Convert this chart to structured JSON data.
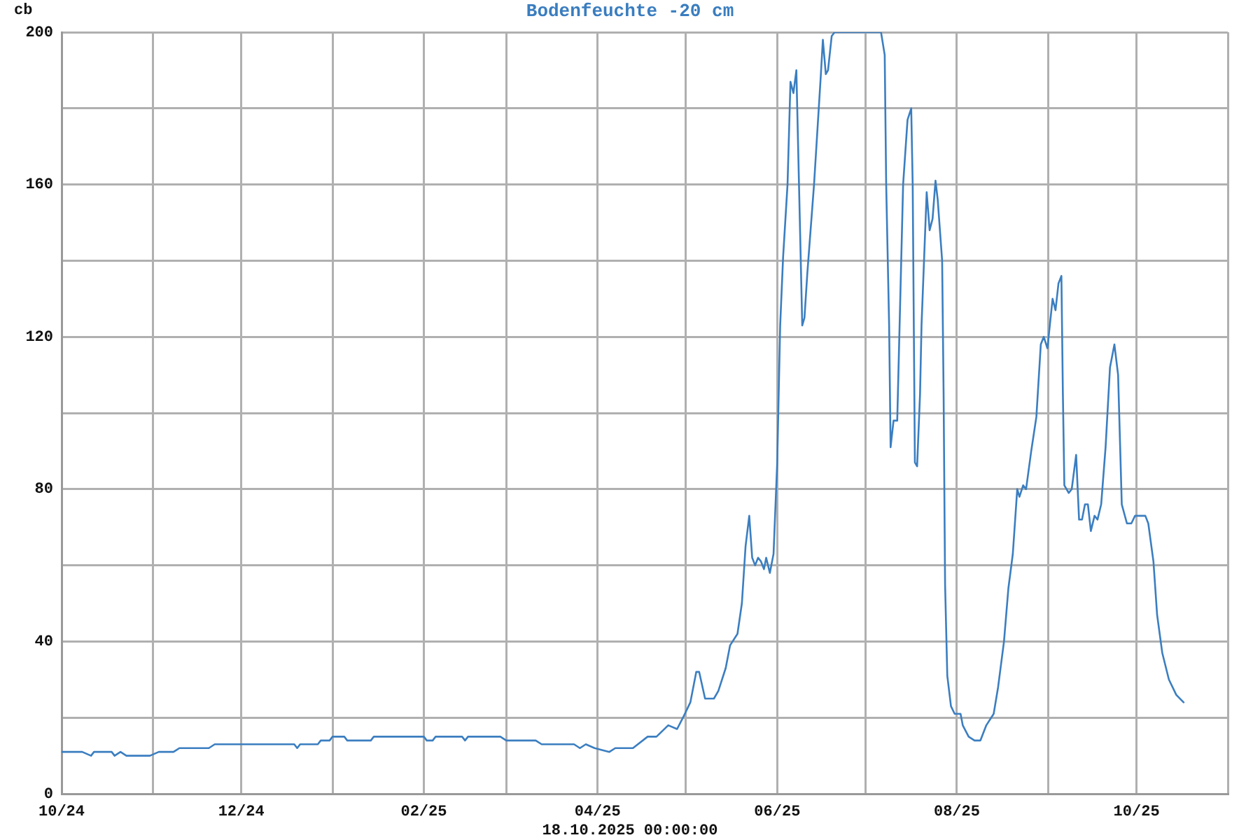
{
  "chart_data": {
    "type": "line",
    "title": "Bodenfeuchte -20 cm",
    "ylabel": "cb",
    "annotations": [
      "18.10.2025 00:00:00"
    ],
    "xlim": [
      "2024-10",
      "2025-11"
    ],
    "xticks": [
      {
        "value": "2024-10",
        "label": "10/24"
      },
      {
        "value": "2024-11",
        "label": null
      },
      {
        "value": "2024-12",
        "label": "12/24"
      },
      {
        "value": "2025-01",
        "label": null
      },
      {
        "value": "2025-02",
        "label": "02/25"
      },
      {
        "value": "2025-03",
        "label": null
      },
      {
        "value": "2025-04",
        "label": "04/25"
      },
      {
        "value": "2025-05",
        "label": null
      },
      {
        "value": "2025-06",
        "label": "06/25"
      },
      {
        "value": "2025-07",
        "label": null
      },
      {
        "value": "2025-08",
        "label": "08/25"
      },
      {
        "value": "2025-09",
        "label": null
      },
      {
        "value": "2025-10",
        "label": "10/25"
      },
      {
        "value": "2025-11",
        "label": null
      }
    ],
    "ylim": [
      0,
      200
    ],
    "yticks": [
      0,
      {
        "value": 20,
        "label": null
      },
      40,
      {
        "value": 60,
        "label": null
      },
      80,
      {
        "value": 100,
        "label": null
      },
      120,
      {
        "value": 140,
        "label": null
      },
      160,
      {
        "value": 180,
        "label": null
      },
      200
    ],
    "grid": true,
    "color": "#3b7ec0",
    "x": [
      "2024-10-01",
      "2024-10-08",
      "2024-10-11",
      "2024-10-12",
      "2024-10-18",
      "2024-10-19",
      "2024-10-21",
      "2024-10-23",
      "2024-10-31",
      "2024-11-03",
      "2024-11-08",
      "2024-11-10",
      "2024-11-20",
      "2024-11-22",
      "2024-12-19",
      "2024-12-20",
      "2024-12-21",
      "2024-12-27",
      "2024-12-28",
      "2024-12-31",
      "2025-01-01",
      "2025-01-05",
      "2025-01-06",
      "2025-01-14",
      "2025-01-15",
      "2025-02-01",
      "2025-02-02",
      "2025-02-04",
      "2025-02-05",
      "2025-02-14",
      "2025-02-15",
      "2025-02-16",
      "2025-02-27",
      "2025-03-01",
      "2025-03-11",
      "2025-03-13",
      "2025-03-24",
      "2025-03-26",
      "2025-03-28",
      "2025-03-31",
      "2025-04-05",
      "2025-04-07",
      "2025-04-13",
      "2025-04-18",
      "2025-04-21",
      "2025-04-25",
      "2025-04-28",
      "2025-04-30",
      "2025-05-02T12:00",
      "2025-05-04T12:00",
      "2025-05-05T12:00",
      "2025-05-07T12:00",
      "2025-05-10T12:00",
      "2025-05-12",
      "2025-05-14T12:00",
      "2025-05-16",
      "2025-05-18T12:00",
      "2025-05-20",
      "2025-05-21T06:00",
      "2025-05-22T12:00",
      "2025-05-23T12:00",
      "2025-05-24T12:00",
      "2025-05-25T12:00",
      "2025-05-26T12:00",
      "2025-05-27T12:00",
      "2025-05-28T06:00",
      "2025-05-29T12:00",
      "2025-05-30T18:00",
      "2025-06-01",
      "2025-06-02",
      "2025-06-03",
      "2025-06-04T12:00",
      "2025-06-05T12:00",
      "2025-06-06T12:00",
      "2025-06-07T12:00",
      "2025-06-09T12:00",
      "2025-06-10T06:00",
      "2025-06-11T06:00",
      "2025-06-13T12:00",
      "2025-06-15T18:00",
      "2025-06-16T12:00",
      "2025-06-17T12:00",
      "2025-06-18T06:00",
      "2025-06-19T12:00",
      "2025-06-20T12:00",
      "2025-07-06T06:00",
      "2025-07-07T12:00",
      "2025-07-08",
      "2025-07-09",
      "2025-07-09T12:00",
      "2025-07-10T12:00",
      "2025-07-11T18:00",
      "2025-07-13T18:00",
      "2025-07-15T06:00",
      "2025-07-16T12:00",
      "2025-07-17",
      "2025-07-17T18:00",
      "2025-07-18T12:00",
      "2025-07-19T12:00",
      "2025-07-20",
      "2025-07-21T18:00",
      "2025-07-22T18:00",
      "2025-07-23T18:00",
      "2025-07-24T18:00",
      "2025-07-25T12:00",
      "2025-07-27",
      "2025-07-27T12:00",
      "2025-07-28",
      "2025-07-28T18:00",
      "2025-07-30",
      "2025-07-31T06:00",
      "2025-08-02T06:00",
      "2025-08-03",
      "2025-08-05",
      "2025-08-07",
      "2025-08-09",
      "2025-08-11",
      "2025-08-13T12:00",
      "2025-08-15",
      "2025-08-17",
      "2025-08-18T12:00",
      "2025-08-20",
      "2025-08-21T12:00",
      "2025-08-22T06:00",
      "2025-08-23T12:00",
      "2025-08-24T12:00",
      "2025-08-26T06:00",
      "2025-08-28",
      "2025-08-29T12:00",
      "2025-08-30T12:00",
      "2025-08-31T18:00",
      "2025-09-02T12:00",
      "2025-09-03T12:00",
      "2025-09-04T12:00",
      "2025-09-05T12:00",
      "2025-09-06",
      "2025-09-06T12:00",
      "2025-09-08",
      "2025-09-09",
      "2025-09-10T12:00",
      "2025-09-11T12:00",
      "2025-09-12T12:00",
      "2025-09-13T12:00",
      "2025-09-14T12:00",
      "2025-09-15T12:00",
      "2025-09-16T18:00",
      "2025-09-17T18:00",
      "2025-09-19",
      "2025-09-20T12:00",
      "2025-09-22",
      "2025-09-23T12:00",
      "2025-09-24T18:00",
      "2025-09-26",
      "2025-09-27T18:00",
      "2025-09-29T06:00",
      "2025-09-30T12:00",
      "2025-10-02T12:00",
      "2025-10-04",
      "2025-10-05",
      "2025-10-06T18:00",
      "2025-10-08",
      "2025-10-09T18:00",
      "2025-10-12",
      "2025-10-14T12:00",
      "2025-10-17"
    ],
    "values": [
      11,
      11,
      10,
      11,
      11,
      10,
      11,
      10,
      10,
      11,
      11,
      12,
      12,
      13,
      13,
      12,
      13,
      13,
      14,
      14,
      15,
      15,
      14,
      14,
      15,
      15,
      14,
      14,
      15,
      15,
      14,
      15,
      15,
      14,
      14,
      13,
      13,
      12,
      13,
      12,
      11,
      12,
      12,
      15,
      15,
      18,
      17,
      20,
      24,
      32,
      32,
      25,
      25,
      27,
      33,
      39,
      42,
      50,
      65,
      73,
      62,
      60,
      62,
      61,
      59,
      62,
      58,
      63,
      87,
      123,
      141,
      160,
      187,
      184,
      190,
      123,
      125,
      137,
      160,
      188,
      198,
      189,
      190,
      199,
      200,
      200,
      194,
      160,
      123,
      91,
      98,
      98,
      160,
      177,
      180,
      160,
      87,
      86,
      105,
      123,
      158,
      148,
      151,
      161,
      156,
      140,
      105,
      55,
      31,
      23,
      21,
      21,
      18,
      15,
      14,
      14,
      18,
      21,
      28,
      40,
      54,
      63,
      80,
      78,
      81,
      80,
      90,
      99,
      118,
      120,
      117,
      130,
      127,
      134,
      136,
      105,
      81,
      79,
      80,
      89,
      72,
      72,
      76,
      76,
      69,
      73,
      72,
      76,
      91,
      112,
      118,
      110,
      76,
      71,
      71,
      73,
      73,
      73,
      71,
      61,
      47,
      37,
      30,
      26,
      24
    ]
  }
}
